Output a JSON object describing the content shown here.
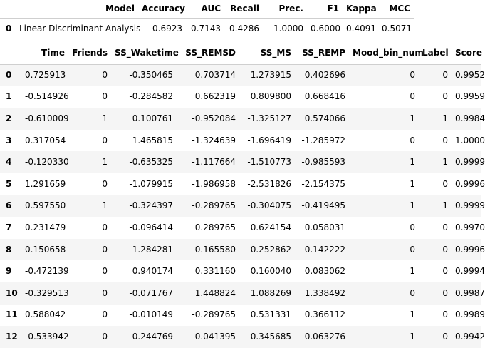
{
  "metrics": {
    "columns": [
      "Model",
      "Accuracy",
      "AUC",
      "Recall",
      "Prec.",
      "F1",
      "Kappa",
      "MCC"
    ],
    "rows": [
      {
        "index": "0",
        "Model": "Linear Discriminant Analysis",
        "Accuracy": "0.6923",
        "AUC": "0.7143",
        "Recall": "0.4286",
        "Prec": "1.0000",
        "F1": "0.6000",
        "Kappa": "0.4091",
        "MCC": "0.5071"
      }
    ]
  },
  "data": {
    "columns": [
      "Time",
      "Friends",
      "SS_Waketime",
      "SS_REMSD",
      "SS_MS",
      "SS_REMP",
      "Mood_bin_num",
      "Label",
      "Score"
    ],
    "rows": [
      {
        "index": "0",
        "cells": [
          "0.725913",
          "0",
          "-0.350465",
          "0.703714",
          "1.273915",
          "0.402696",
          "0",
          "0",
          "0.9952"
        ]
      },
      {
        "index": "1",
        "cells": [
          "-0.514926",
          "0",
          "-0.284582",
          "0.662319",
          "0.809800",
          "0.668416",
          "0",
          "0",
          "0.9959"
        ]
      },
      {
        "index": "2",
        "cells": [
          "-0.610009",
          "1",
          "0.100761",
          "-0.952084",
          "-1.325127",
          "0.574066",
          "1",
          "1",
          "0.9984"
        ]
      },
      {
        "index": "3",
        "cells": [
          "0.317054",
          "0",
          "1.465815",
          "-1.324639",
          "-1.696419",
          "-1.285972",
          "0",
          "0",
          "1.0000"
        ]
      },
      {
        "index": "4",
        "cells": [
          "-0.120330",
          "1",
          "-0.635325",
          "-1.117664",
          "-1.510773",
          "-0.985593",
          "1",
          "1",
          "0.9999"
        ]
      },
      {
        "index": "5",
        "cells": [
          "1.291659",
          "0",
          "-1.079915",
          "-1.986958",
          "-2.531826",
          "-2.154375",
          "1",
          "0",
          "0.9996"
        ]
      },
      {
        "index": "6",
        "cells": [
          "0.597550",
          "1",
          "-0.324397",
          "-0.289765",
          "-0.304075",
          "-0.419495",
          "1",
          "1",
          "0.9999"
        ]
      },
      {
        "index": "7",
        "cells": [
          "0.231479",
          "0",
          "-0.096414",
          "0.289765",
          "0.624154",
          "0.058031",
          "0",
          "0",
          "0.9970"
        ]
      },
      {
        "index": "8",
        "cells": [
          "0.150658",
          "0",
          "1.284281",
          "-0.165580",
          "0.252862",
          "-0.142222",
          "0",
          "0",
          "0.9996"
        ]
      },
      {
        "index": "9",
        "cells": [
          "-0.472139",
          "0",
          "0.940174",
          "0.331160",
          "0.160040",
          "0.083062",
          "1",
          "0",
          "0.9994"
        ]
      },
      {
        "index": "10",
        "cells": [
          "-0.329513",
          "0",
          "-0.071767",
          "1.448824",
          "1.088269",
          "1.338492",
          "0",
          "0",
          "0.9987"
        ]
      },
      {
        "index": "11",
        "cells": [
          "0.588042",
          "0",
          "-0.010149",
          "-0.289765",
          "0.531331",
          "0.366112",
          "1",
          "0",
          "0.9989"
        ]
      },
      {
        "index": "12",
        "cells": [
          "-0.533942",
          "0",
          "-0.244769",
          "-0.041395",
          "0.345685",
          "-0.063276",
          "1",
          "0",
          "0.9942"
        ]
      }
    ]
  }
}
